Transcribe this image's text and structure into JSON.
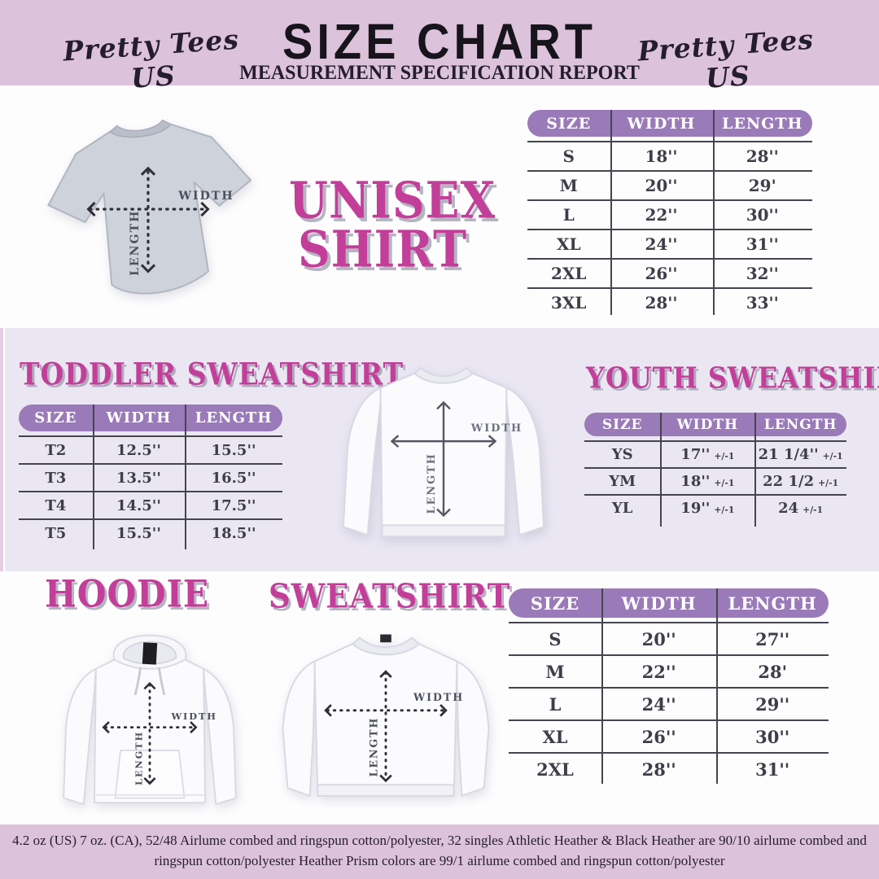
{
  "header": {
    "brand": "Pretty Tees US",
    "title": "SIZE CHART",
    "subtitle": "MEASUREMENT SPECIFICATION REPORT"
  },
  "labels": {
    "width": "WIDTH",
    "length": "LENGTH"
  },
  "colors": {
    "header_band": "#ddc2dc",
    "lavender_band": "#eae7f3",
    "white_band": "#fdfdfe",
    "table_header_purple": "#9a7ab8",
    "title_magenta": "#c33e99",
    "table_text": "#3e3e48",
    "line": "#45454f"
  },
  "sections": {
    "unisex": {
      "title_line1": "UNISEX",
      "title_line2": "SHIRT",
      "table": {
        "headers": [
          "SIZE",
          "WIDTH",
          "LENGTH"
        ],
        "rows": [
          [
            "S",
            "18''",
            "28''"
          ],
          [
            "M",
            "20''",
            "29'"
          ],
          [
            "L",
            "22''",
            "30''"
          ],
          [
            "XL",
            "24''",
            "31''"
          ],
          [
            "2XL",
            "26''",
            "32''"
          ],
          [
            "3XL",
            "28''",
            "33''"
          ]
        ]
      }
    },
    "toddler": {
      "title": "TODDLER SWEATSHIRT",
      "table": {
        "headers": [
          "SIZE",
          "WIDTH",
          "LENGTH"
        ],
        "rows": [
          [
            "T2",
            "12.5''",
            "15.5''"
          ],
          [
            "T3",
            "13.5''",
            "16.5''"
          ],
          [
            "T4",
            "14.5''",
            "17.5''"
          ],
          [
            "T5",
            "15.5''",
            "18.5''"
          ]
        ]
      }
    },
    "youth": {
      "title": "YOUTH SWEATSHIRT",
      "table": {
        "headers": [
          "SIZE",
          "WIDTH",
          "LENGTH"
        ],
        "rows": [
          [
            "YS",
            [
              "17''",
              "+/-1"
            ],
            [
              "21 1/4''",
              "+/-1"
            ]
          ],
          [
            "YM",
            [
              "18''",
              "+/-1"
            ],
            [
              "22 1/2",
              "+/-1"
            ]
          ],
          [
            "YL",
            [
              "19''",
              "+/-1"
            ],
            [
              "24",
              "+/-1"
            ]
          ]
        ]
      }
    },
    "hoodie": {
      "title": "HOODIE"
    },
    "sweatshirt": {
      "title": "SWEATSHIRT",
      "table": {
        "headers": [
          "SIZE",
          "WIDTH",
          "LENGTH"
        ],
        "rows": [
          [
            "S",
            "20''",
            "27''"
          ],
          [
            "M",
            "22''",
            "28'"
          ],
          [
            "L",
            "24''",
            "29''"
          ],
          [
            "XL",
            "26''",
            "30''"
          ],
          [
            "2XL",
            "28''",
            "31''"
          ]
        ]
      }
    }
  },
  "footer": {
    "line1": "4.2 oz (US) 7 oz. (CA), 52/48 Airlume combed and ringspun cotton/polyester, 32 singles Athletic Heather & Black Heather are 90/10 airlume combed and",
    "line2": "ringspun cotton/polyester Heather Prism colors are 99/1 airlume combed and ringspun cotton/polyester"
  }
}
